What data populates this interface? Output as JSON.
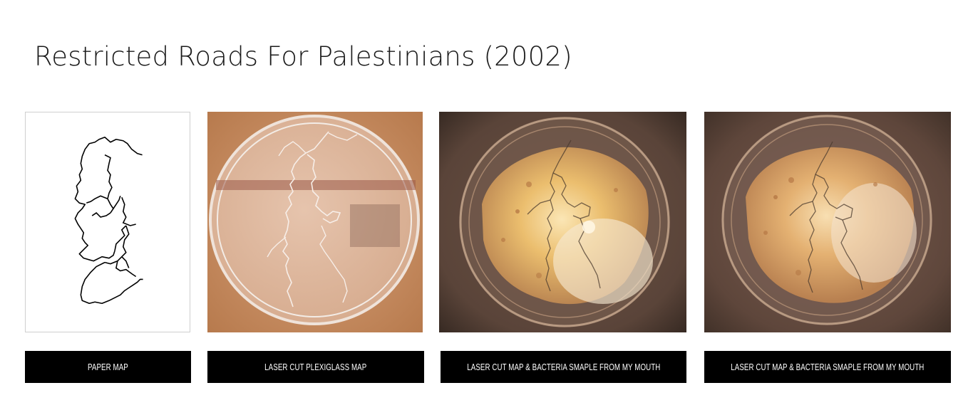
{
  "header": {
    "title": "Restricted Roads For Palestinians (2002)"
  },
  "gallery": {
    "items": [
      {
        "image": "paper-map-image",
        "caption": "PAPER MAP"
      },
      {
        "image": "plexiglass-petri-dish-image",
        "caption": "LASER CUT PLEXIGLASS MAP"
      },
      {
        "image": "bacteria-petri-dish-image-1",
        "caption": "LASER CUT MAP & BACTERIA SMAPLE FROM MY MOUTH"
      },
      {
        "image": "bacteria-petri-dish-image-2",
        "caption": "LASER CUT MAP & BACTERIA SMAPLE FROM MY MOUTH"
      }
    ]
  },
  "colors": {
    "caption_bg": "#000000",
    "caption_text": "#ffffff",
    "title_text": "#1a1a1a",
    "cardboard": "#c8885a",
    "culture": "#e9b86a"
  }
}
